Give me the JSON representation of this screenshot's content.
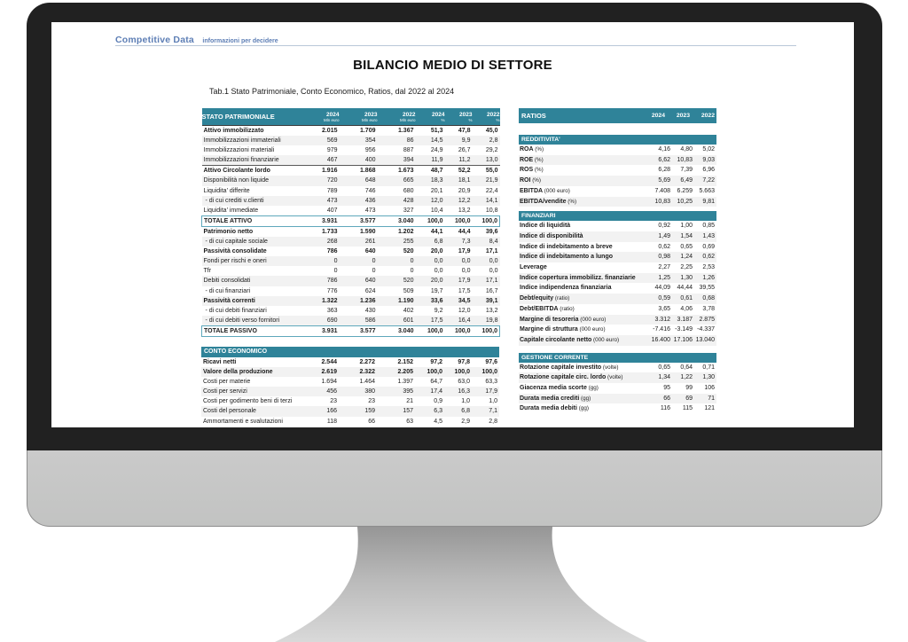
{
  "colors": {
    "header_teal": "#2f8399",
    "total_border": "#5fa8bc",
    "brand_blue": "#5d7eb5",
    "stripe": "#f2f2f2"
  },
  "brand": {
    "name": "Competitive Data",
    "tagline": "informazioni per decidere"
  },
  "page": {
    "title": "BILANCIO MEDIO DI SETTORE",
    "caption": "Tab.1 Stato Patrimoniale, Conto Economico, Ratios, dal 2022 al 2024"
  },
  "balance_table": {
    "title": "STATO PATRIMONIALE",
    "cols": [
      {
        "year": "2024",
        "unit": "Mln euro"
      },
      {
        "year": "2023",
        "unit": "Mln euro"
      },
      {
        "year": "2022",
        "unit": "Mln euro"
      },
      {
        "year": "2024",
        "unit": "%"
      },
      {
        "year": "2023",
        "unit": "%"
      },
      {
        "year": "2022",
        "unit": "%"
      }
    ],
    "rows": [
      {
        "label": "Attivo immobilizzato",
        "style": "bold",
        "values": [
          "2.015",
          "1.709",
          "1.367",
          "51,3",
          "47,8",
          "45,0"
        ]
      },
      {
        "label": "Immobilizzazioni immateriali",
        "style": "",
        "values": [
          "569",
          "354",
          "86",
          "14,5",
          "9,9",
          "2,8"
        ]
      },
      {
        "label": "Immobilizzazioni materiali",
        "style": "",
        "values": [
          "979",
          "956",
          "887",
          "24,9",
          "26,7",
          "29,2"
        ]
      },
      {
        "label": "Immobilizzazioni finanziarie",
        "style": "",
        "values": [
          "467",
          "400",
          "394",
          "11,9",
          "11,2",
          "13,0"
        ]
      },
      {
        "label": "Attivo Circolante  lordo",
        "style": "bold bt",
        "values": [
          "1.916",
          "1.868",
          "1.673",
          "48,7",
          "52,2",
          "55,0"
        ]
      },
      {
        "label": "Disponibilità non liquide",
        "style": "",
        "values": [
          "720",
          "648",
          "665",
          "18,3",
          "18,1",
          "21,9"
        ]
      },
      {
        "label": "Liquidita'  differite",
        "style": "",
        "values": [
          "789",
          "746",
          "680",
          "20,1",
          "20,9",
          "22,4"
        ]
      },
      {
        "label": "- di cui crediti v.clienti",
        "style": "sub",
        "values": [
          "473",
          "436",
          "428",
          "12,0",
          "12,2",
          "14,1"
        ]
      },
      {
        "label": "Liquidita'  immediate",
        "style": "",
        "values": [
          "407",
          "473",
          "327",
          "10,4",
          "13,2",
          "10,8"
        ]
      },
      {
        "label": "TOTALE ATTIVO",
        "style": "total",
        "values": [
          "3.931",
          "3.577",
          "3.040",
          "100,0",
          "100,0",
          "100,0"
        ]
      },
      {
        "label": "Patrimonio netto",
        "style": "bold",
        "values": [
          "1.733",
          "1.590",
          "1.202",
          "44,1",
          "44,4",
          "39,6"
        ]
      },
      {
        "label": "- di cui capitale sociale",
        "style": "sub",
        "values": [
          "268",
          "261",
          "255",
          "6,8",
          "7,3",
          "8,4"
        ]
      },
      {
        "label": "Passività consolidate",
        "style": "bold",
        "values": [
          "786",
          "640",
          "520",
          "20,0",
          "17,9",
          "17,1"
        ]
      },
      {
        "label": "Fondi per rischi e oneri",
        "style": "",
        "values": [
          "0",
          "0",
          "0",
          "0,0",
          "0,0",
          "0,0"
        ]
      },
      {
        "label": "Tfr",
        "style": "",
        "values": [
          "0",
          "0",
          "0",
          "0,0",
          "0,0",
          "0,0"
        ]
      },
      {
        "label": "Debiti consolidati",
        "style": "",
        "values": [
          "786",
          "640",
          "520",
          "20,0",
          "17,9",
          "17,1"
        ]
      },
      {
        "label": "- di cui finanziari",
        "style": "sub",
        "values": [
          "776",
          "624",
          "509",
          "19,7",
          "17,5",
          "16,7"
        ]
      },
      {
        "label": "Passività correnti",
        "style": "bold",
        "values": [
          "1.322",
          "1.236",
          "1.190",
          "33,6",
          "34,5",
          "39,1"
        ]
      },
      {
        "label": "- di cui debiti finanziari",
        "style": "sub",
        "values": [
          "363",
          "430",
          "402",
          "9,2",
          "12,0",
          "13,2"
        ]
      },
      {
        "label": "- di cui debiti verso fornitori",
        "style": "sub",
        "values": [
          "690",
          "586",
          "601",
          "17,5",
          "16,4",
          "19,8"
        ]
      },
      {
        "label": "TOTALE PASSIVO",
        "style": "total",
        "values": [
          "3.931",
          "3.577",
          "3.040",
          "100,0",
          "100,0",
          "100,0"
        ]
      }
    ]
  },
  "income_table": {
    "title": "CONTO ECONOMICO",
    "rows": [
      {
        "label": "Ricavi netti",
        "style": "bold",
        "values": [
          "2.544",
          "2.272",
          "2.152",
          "97,2",
          "97,8",
          "97,6"
        ]
      },
      {
        "label": "Valore della produzione",
        "style": "bold",
        "values": [
          "2.619",
          "2.322",
          "2.205",
          "100,0",
          "100,0",
          "100,0"
        ]
      },
      {
        "label": "Costi per materie",
        "style": "",
        "values": [
          "1.694",
          "1.464",
          "1.397",
          "64,7",
          "63,0",
          "63,3"
        ]
      },
      {
        "label": "Costi per servizi",
        "style": "",
        "values": [
          "456",
          "380",
          "395",
          "17,4",
          "16,3",
          "17,9"
        ]
      },
      {
        "label": "Costi per godimento beni di terzi",
        "style": "",
        "values": [
          "23",
          "23",
          "21",
          "0,9",
          "1,0",
          "1,0"
        ]
      },
      {
        "label": "Costi del personale",
        "style": "",
        "values": [
          "166",
          "159",
          "157",
          "6,3",
          "6,8",
          "7,1"
        ]
      },
      {
        "label": "Ammortamenti e svalutazioni",
        "style": "",
        "values": [
          "118",
          "66",
          "63",
          "4,5",
          "2,9",
          "2,8"
        ]
      }
    ]
  },
  "ratios_table": {
    "title": "RATIOS",
    "years": [
      "2024",
      "2023",
      "2022"
    ],
    "sections": [
      {
        "title": "REDDITIVITA'",
        "rows": [
          {
            "label": "ROA",
            "unit": "(%)",
            "values": [
              "4,16",
              "4,80",
              "5,02"
            ]
          },
          {
            "label": "ROE",
            "unit": "(%)",
            "values": [
              "6,62",
              "10,83",
              "9,03"
            ]
          },
          {
            "label": "ROS",
            "unit": "(%)",
            "values": [
              "6,28",
              "7,39",
              "6,96"
            ]
          },
          {
            "label": "ROI",
            "unit": "(%)",
            "values": [
              "5,69",
              "6,49",
              "7,22"
            ]
          },
          {
            "label": "EBITDA",
            "unit": "(000 euro)",
            "values": [
              "7.408",
              "6.259",
              "5.663"
            ]
          },
          {
            "label": "EBITDA/vendite",
            "unit": "(%)",
            "values": [
              "10,83",
              "10,25",
              "9,81"
            ]
          }
        ]
      },
      {
        "title": "FINANZIARI",
        "rows": [
          {
            "label": "Indice di liquidità",
            "unit": "",
            "values": [
              "0,92",
              "1,00",
              "0,85"
            ]
          },
          {
            "label": "Indice di disponibilità",
            "unit": "",
            "values": [
              "1,49",
              "1,54",
              "1,43"
            ]
          },
          {
            "label": "Indice di indebitamento a breve",
            "unit": "",
            "values": [
              "0,62",
              "0,65",
              "0,69"
            ]
          },
          {
            "label": "Indice di indebitamento a lungo",
            "unit": "",
            "values": [
              "0,98",
              "1,24",
              "0,62"
            ]
          },
          {
            "label": "Leverage",
            "unit": "",
            "values": [
              "2,27",
              "2,25",
              "2,53"
            ]
          },
          {
            "label": "Indice copertura immobilizz. finanziarie",
            "unit": "",
            "values": [
              "1,25",
              "1,30",
              "1,26"
            ]
          },
          {
            "label": "Indice indipendenza finanziaria",
            "unit": "",
            "values": [
              "44,09",
              "44,44",
              "39,55"
            ]
          },
          {
            "label": "Debt/equity",
            "unit": "(ratio)",
            "values": [
              "0,59",
              "0,61",
              "0,68"
            ]
          },
          {
            "label": "Debt/EBITDA",
            "unit": "(ratio)",
            "values": [
              "3,65",
              "4,06",
              "3,78"
            ]
          },
          {
            "label": "Margine di tesoreria",
            "unit": "(000 euro)",
            "values": [
              "3.312",
              "3.187",
              "2.875"
            ]
          },
          {
            "label": "Margine di struttura",
            "unit": "(000 euro)",
            "values": [
              "-7.416",
              "-3.149",
              "-4.337"
            ]
          },
          {
            "label": "Capitale circolante netto",
            "unit": "(000 euro)",
            "values": [
              "16.400",
              "17.106",
              "13.040"
            ]
          }
        ]
      },
      {
        "title": "GESTIONE CORRENTE",
        "rows": [
          {
            "label": "Rotazione capitale investito",
            "unit": "(volte)",
            "values": [
              "0,65",
              "0,64",
              "0,71"
            ]
          },
          {
            "label": "Rotazione capitale circ. lordo",
            "unit": "(volte)",
            "values": [
              "1,34",
              "1,22",
              "1,30"
            ]
          },
          {
            "label": "Giacenza media scorte",
            "unit": "(gg)",
            "values": [
              "95",
              "99",
              "106"
            ]
          },
          {
            "label": "Durata media crediti",
            "unit": "(gg)",
            "values": [
              "66",
              "69",
              "71"
            ]
          },
          {
            "label": "Durata media debiti",
            "unit": "(gg)",
            "values": [
              "116",
              "115",
              "121"
            ]
          }
        ]
      }
    ]
  }
}
